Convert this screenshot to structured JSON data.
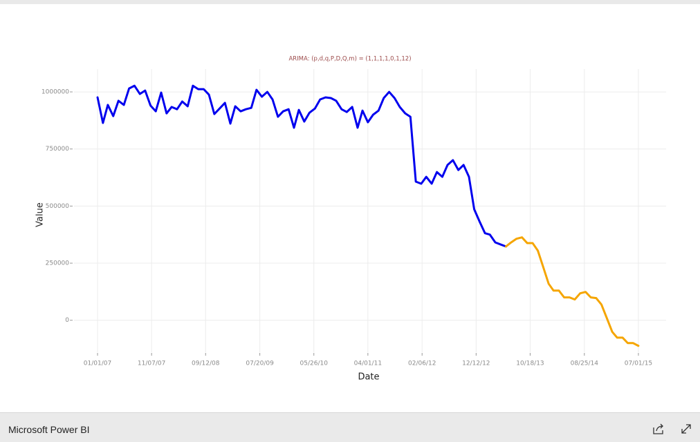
{
  "chart_data": {
    "type": "line",
    "title": "ARIMA: (p,d,q,P,D,Q,m) = (1,1,1,1,0,1,12)",
    "xlabel": "Date",
    "ylabel": "Value",
    "x": [
      "2007-01-01",
      "2007-02-01",
      "2007-03-01",
      "2007-04-01",
      "2007-05-01",
      "2007-06-01",
      "2007-07-01",
      "2007-08-01",
      "2007-09-01",
      "2007-10-01",
      "2007-11-01",
      "2007-12-01",
      "2008-01-01",
      "2008-02-01",
      "2008-03-01",
      "2008-04-01",
      "2008-05-01",
      "2008-06-01",
      "2008-07-01",
      "2008-08-01",
      "2008-09-01",
      "2008-10-01",
      "2008-11-01",
      "2008-12-01",
      "2009-01-01",
      "2009-02-01",
      "2009-03-01",
      "2009-04-01",
      "2009-05-01",
      "2009-06-01",
      "2009-07-01",
      "2009-08-01",
      "2009-09-01",
      "2009-10-01",
      "2009-11-01",
      "2009-12-01",
      "2010-01-01",
      "2010-02-01",
      "2010-03-01",
      "2010-04-01",
      "2010-05-01",
      "2010-06-01",
      "2010-07-01",
      "2010-08-01",
      "2010-09-01",
      "2010-10-01",
      "2010-11-01",
      "2010-12-01",
      "2011-01-01",
      "2011-02-01",
      "2011-03-01",
      "2011-04-01",
      "2011-05-01",
      "2011-06-01",
      "2011-07-01",
      "2011-08-01",
      "2011-09-01",
      "2011-10-01",
      "2011-11-01",
      "2011-12-01",
      "2012-01-01",
      "2012-02-01",
      "2012-03-01",
      "2012-04-01",
      "2012-05-01",
      "2012-06-01",
      "2012-07-01",
      "2012-08-01",
      "2012-09-01",
      "2012-10-01",
      "2012-11-01",
      "2012-12-01",
      "2013-01-01",
      "2013-02-01",
      "2013-03-01",
      "2013-04-01",
      "2013-05-01",
      "2013-06-01",
      "2013-07-01",
      "2013-08-01",
      "2013-09-01",
      "2013-10-01",
      "2013-11-01",
      "2013-12-01",
      "2014-01-01",
      "2014-02-01",
      "2014-03-01",
      "2014-04-01",
      "2014-05-01",
      "2014-06-01",
      "2014-07-01",
      "2014-08-01",
      "2014-09-01",
      "2014-10-01",
      "2014-11-01",
      "2014-12-01",
      "2015-01-01",
      "2015-02-01",
      "2015-03-01",
      "2015-04-01",
      "2015-05-01",
      "2015-06-01",
      "2015-07-01"
    ],
    "series": [
      {
        "color": "#0000ee",
        "values": [
          976000,
          864000,
          943000,
          894000,
          961000,
          943000,
          1015000,
          1027000,
          991000,
          1006000,
          940000,
          915000,
          997000,
          906000,
          934000,
          924000,
          958000,
          937000,
          1027000,
          1012000,
          1012000,
          988000,
          903000,
          927000,
          952000,
          861000,
          937000,
          915000,
          924000,
          930000,
          1009000,
          979000,
          1000000,
          967000,
          891000,
          915000,
          924000,
          843000,
          921000,
          870000,
          909000,
          927000,
          967000,
          976000,
          973000,
          961000,
          924000,
          912000,
          934000,
          843000,
          918000,
          867000,
          900000,
          918000,
          973000,
          1000000,
          973000,
          934000,
          906000,
          891000,
          607000,
          598000,
          628000,
          598000,
          649000,
          628000,
          680000,
          701000,
          658000,
          680000,
          628000,
          486000,
          432000,
          381000,
          375000,
          341000,
          332000,
          323000,
          null,
          null,
          null,
          null,
          null,
          null,
          null,
          null,
          null,
          null,
          null,
          null,
          null,
          null,
          null,
          null,
          null,
          null,
          null,
          null,
          null,
          null,
          null,
          null,
          null
        ]
      },
      {
        "color": "#f5a500",
        "values": [
          null,
          null,
          null,
          null,
          null,
          null,
          null,
          null,
          null,
          null,
          null,
          null,
          null,
          null,
          null,
          null,
          null,
          null,
          null,
          null,
          null,
          null,
          null,
          null,
          null,
          null,
          null,
          null,
          null,
          null,
          null,
          null,
          null,
          null,
          null,
          null,
          null,
          null,
          null,
          null,
          null,
          null,
          null,
          null,
          null,
          null,
          null,
          null,
          null,
          null,
          null,
          null,
          null,
          null,
          null,
          null,
          null,
          null,
          null,
          null,
          null,
          null,
          null,
          null,
          null,
          null,
          null,
          null,
          null,
          null,
          null,
          null,
          null,
          null,
          null,
          null,
          null,
          323000,
          341000,
          357000,
          363000,
          338000,
          338000,
          305000,
          233000,
          160000,
          130000,
          130000,
          100000,
          100000,
          91000,
          118000,
          124000,
          100000,
          97000,
          69000,
          9000,
          -51000,
          -76000,
          -76000,
          -100000,
          -100000,
          -112000
        ]
      }
    ],
    "xlim": [
      "2006-08-19",
      "2015-12-07"
    ],
    "xticks": [
      {
        "value": "2007-01-01",
        "label": "01/01/07"
      },
      {
        "value": "2007-11-07",
        "label": "11/07/07"
      },
      {
        "value": "2008-09-12",
        "label": "09/12/08"
      },
      {
        "value": "2009-07-20",
        "label": "07/20/09"
      },
      {
        "value": "2010-05-26",
        "label": "05/26/10"
      },
      {
        "value": "2011-04-01",
        "label": "04/01/11"
      },
      {
        "value": "2012-02-06",
        "label": "02/06/12"
      },
      {
        "value": "2012-12-12",
        "label": "12/12/12"
      },
      {
        "value": "2013-10-18",
        "label": "10/18/13"
      },
      {
        "value": "2014-08-25",
        "label": "08/25/14"
      },
      {
        "value": "2015-07-01",
        "label": "07/01/15"
      }
    ],
    "ylim": [
      -140000,
      1100000
    ],
    "yticks": [
      0,
      250000,
      500000,
      750000,
      1000000
    ],
    "grid": true
  },
  "footer": {
    "title": "Microsoft Power BI"
  }
}
